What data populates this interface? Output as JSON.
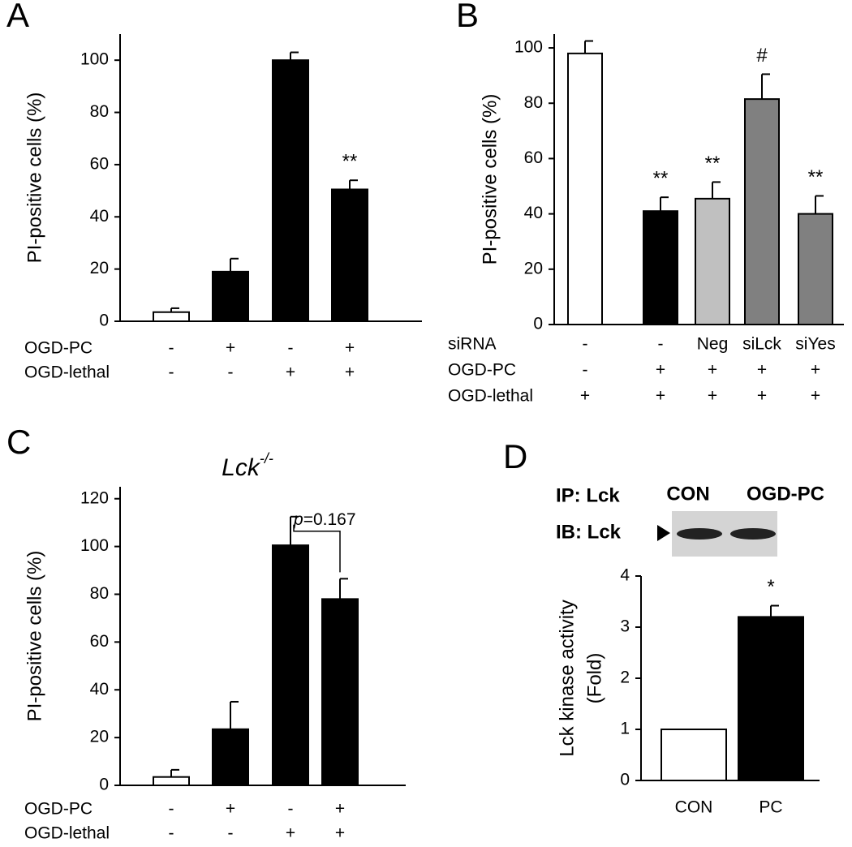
{
  "chart_data": [
    {
      "panel": "A",
      "type": "bar",
      "ylabel": "PI-positive cells (%)",
      "values": [
        3.5,
        19,
        100,
        50.5
      ],
      "errors": [
        1.5,
        5,
        3,
        3.5
      ],
      "colors": [
        "#ffffff",
        "#000000",
        "#000000",
        "#000000"
      ],
      "annotations": [
        null,
        null,
        null,
        "**"
      ],
      "conditions": [
        {
          "name": "OGD-PC",
          "values": [
            "-",
            "+",
            "-",
            "+"
          ]
        },
        {
          "name": "OGD-lethal",
          "values": [
            "-",
            "-",
            "+",
            "+"
          ]
        }
      ],
      "ylim": [
        0,
        110
      ],
      "yticks": [
        0,
        20,
        40,
        60,
        80,
        100
      ]
    },
    {
      "panel": "B",
      "type": "bar",
      "ylabel": "PI-positive cells (%)",
      "values": [
        98,
        41,
        45.5,
        81.5,
        40
      ],
      "errors": [
        4.5,
        5,
        6,
        9,
        6.5
      ],
      "colors": [
        "#ffffff",
        "#000000",
        "#c0c0c0",
        "#808080",
        "#808080"
      ],
      "annotations": [
        null,
        "**",
        "**",
        "#",
        "**"
      ],
      "conditions": [
        {
          "name": "siRNA",
          "values": [
            "-",
            "-",
            "Neg",
            "siLck",
            "siYes"
          ]
        },
        {
          "name": "OGD-PC",
          "values": [
            "-",
            "+",
            "+",
            "+",
            "+"
          ]
        },
        {
          "name": "OGD-lethal",
          "values": [
            "+",
            "+",
            "+",
            "+",
            "+"
          ]
        }
      ],
      "ylim": [
        0,
        105
      ],
      "yticks": [
        0,
        20,
        40,
        60,
        80,
        100
      ]
    },
    {
      "panel": "C",
      "type": "bar",
      "title": "Lck",
      "title_superscript": "-/-",
      "ylabel": "PI-positive cells (%)",
      "values": [
        3.5,
        23.5,
        100.5,
        78
      ],
      "errors": [
        3,
        11.5,
        12,
        8.5
      ],
      "colors": [
        "#ffffff",
        "#000000",
        "#000000",
        "#000000"
      ],
      "bracket": {
        "between": [
          2,
          3
        ],
        "italic": "p",
        "text": "=0.167"
      },
      "conditions": [
        {
          "name": "OGD-PC",
          "values": [
            "-",
            "+",
            "-",
            "+"
          ]
        },
        {
          "name": "OGD-lethal",
          "values": [
            "-",
            "-",
            "+",
            "+"
          ]
        }
      ],
      "ylim": [
        0,
        125
      ],
      "yticks": [
        0,
        20,
        40,
        60,
        80,
        100,
        120
      ]
    },
    {
      "panel": "D",
      "type": "bar",
      "ylabel": [
        "Lck kinase activity",
        "(Fold)"
      ],
      "blot": {
        "ip": "IP: Lck",
        "ib": "IB: Lck",
        "lanes": [
          "CON",
          "OGD-PC"
        ]
      },
      "categories": [
        "CON",
        "PC"
      ],
      "values": [
        1,
        3.2
      ],
      "errors": [
        0,
        0.22
      ],
      "colors": [
        "#ffffff",
        "#000000"
      ],
      "annotations": [
        null,
        "*"
      ],
      "ylim": [
        0,
        4
      ],
      "yticks": [
        0,
        1,
        2,
        3,
        4
      ]
    }
  ]
}
